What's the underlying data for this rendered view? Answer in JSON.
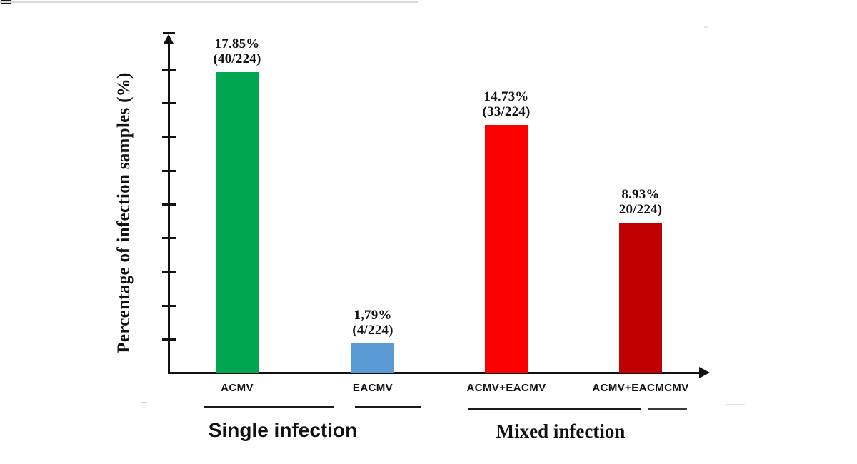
{
  "page": {
    "background": "#ffffff"
  },
  "chart_data": {
    "type": "bar",
    "title": "",
    "xlabel": "",
    "ylabel": "Percentage of infection samples (%)",
    "ylim": [
      0,
      18
    ],
    "ytick_step": 2,
    "grid": false,
    "legend": "none",
    "categories": [
      "ACMV",
      "EACMV",
      "ACMV+EACMV",
      "ACMV+EACMCMV"
    ],
    "values": [
      17.85,
      1.79,
      14.73,
      8.93
    ],
    "bars": [
      {
        "category": "ACMV",
        "value": 17.85,
        "pct_label": "17.85%",
        "count_label": "(40/224)",
        "color": "#00A651",
        "group": "Single infection"
      },
      {
        "category": "EACMV",
        "value": 1.79,
        "pct_label": "1,79%",
        "count_label": "(4/224)",
        "color": "#5B9BD5",
        "group": "Single infection"
      },
      {
        "category": "ACMV+EACMV",
        "value": 14.73,
        "pct_label": "14.73%",
        "count_label": "(33/224)",
        "color": "#FA0000",
        "group": "Mixed infection"
      },
      {
        "category": "ACMV+EACMCMV",
        "value": 8.93,
        "pct_label": "8.93%",
        "count_label": "20/224)",
        "color": "#C00000",
        "group": "Mixed infection"
      }
    ],
    "groups": [
      {
        "label": "Single infection"
      },
      {
        "label": "Mixed infection"
      }
    ]
  }
}
